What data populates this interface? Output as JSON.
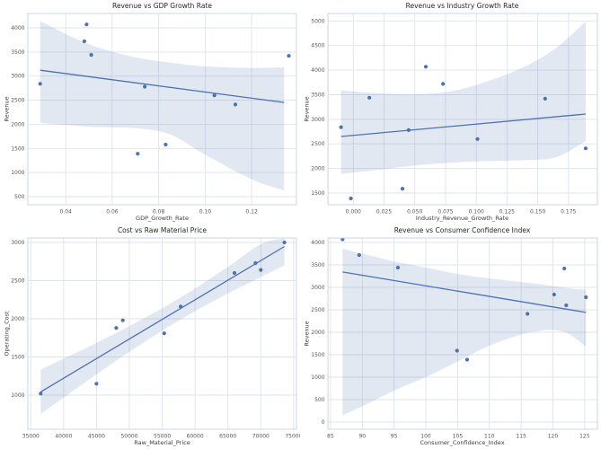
{
  "figure": {
    "rows": 2,
    "cols": 2,
    "background": "#ffffff",
    "description": "2x2 grid of scatter plots with linear regression fits and confidence bands"
  },
  "style": {
    "point_color": "#4c72b0",
    "line_color": "#4c72b0",
    "band_fill": "#4c72b0",
    "band_opacity": 0.16,
    "grid_color": "#dde3ee",
    "spine_color": "#ccd4e3",
    "tick_color": "#555555",
    "title_color": "#262626",
    "label_color": "#3c3c3c"
  },
  "chart_data": [
    {
      "type": "scatter",
      "title": "Revenue vs GDP Growth Rate",
      "xlabel": "GDP_Growth_Rate",
      "ylabel": "Revenue",
      "grid": true,
      "legend": false,
      "xlim": [
        0.0237,
        0.1393
      ],
      "ylim": [
        332,
        4298
      ],
      "xticks": {
        "values": [
          0.04,
          0.06,
          0.08,
          0.1,
          0.12
        ],
        "labels": [
          "0.04",
          "0.06",
          "0.08",
          "0.10",
          "0.12"
        ]
      },
      "yticks": {
        "values": [
          500,
          1000,
          1500,
          2000,
          2500,
          3000,
          3500,
          4000
        ],
        "labels": [
          "500",
          "1000",
          "1500",
          "2000",
          "2500",
          "3000",
          "3500",
          "4000"
        ]
      },
      "x": [
        0.029,
        0.048,
        0.049,
        0.051,
        0.071,
        0.074,
        0.083,
        0.104,
        0.113,
        0.136
      ],
      "y": [
        2840,
        3720,
        4070,
        3440,
        1390,
        2780,
        1580,
        2600,
        2410,
        3420
      ],
      "trendline": {
        "x": [
          0.029,
          0.134
        ],
        "y": [
          3122,
          2453
        ]
      },
      "ci_band": {
        "x": [
          0.029,
          0.05,
          0.07,
          0.085,
          0.1,
          0.12,
          0.134
        ],
        "upper": [
          4140,
          3660,
          3390,
          3280,
          3200,
          3170,
          3180
        ],
        "lower": [
          2030,
          1950,
          1920,
          1790,
          1370,
          860,
          630
        ]
      }
    },
    {
      "type": "scatter",
      "title": "Revenue vs Industry Growth Rate",
      "xlabel": "Industry_Revenue_Growth_Rate",
      "ylabel": "Revenue",
      "grid": true,
      "legend": false,
      "xlim": [
        -0.0206,
        0.1985
      ],
      "ylim": [
        1263,
        5152
      ],
      "xticks": {
        "values": [
          0.0,
          0.025,
          0.05,
          0.075,
          0.1,
          0.125,
          0.15,
          0.175
        ],
        "labels": [
          "0.000",
          "0.025",
          "0.050",
          "0.075",
          "0.100",
          "0.125",
          "0.150",
          "0.175"
        ]
      },
      "yticks": {
        "values": [
          1500,
          2000,
          2500,
          3000,
          3500,
          4000,
          4500,
          5000
        ],
        "labels": [
          "1500",
          "2000",
          "2500",
          "3000",
          "3500",
          "4000",
          "4500",
          "5000"
        ]
      },
      "x": [
        -0.01,
        -0.002,
        0.013,
        0.04,
        0.045,
        0.059,
        0.073,
        0.101,
        0.156,
        0.189
      ],
      "y": [
        2840,
        1390,
        3440,
        1590,
        2780,
        4070,
        3720,
        2600,
        3420,
        2410
      ],
      "trendline": {
        "x": [
          -0.01,
          0.189
        ],
        "y": [
          2651,
          3107
        ]
      },
      "ci_band": {
        "x": [
          -0.01,
          0.02,
          0.05,
          0.08,
          0.11,
          0.14,
          0.165,
          0.189
        ],
        "upper": [
          3590,
          3530,
          3510,
          3570,
          3780,
          4080,
          4450,
          4990
        ],
        "lower": [
          1890,
          1970,
          2060,
          2120,
          2150,
          2170,
          2230,
          2560
        ]
      }
    },
    {
      "type": "scatter",
      "title": "Cost vs Raw Material Price",
      "xlabel": "Raw_Material_Price",
      "ylabel": "Operating_Cost",
      "grid": true,
      "legend": false,
      "xlim": [
        34550,
        75430
      ],
      "ylim": [
        553,
        3059
      ],
      "xticks": {
        "values": [
          35000,
          40000,
          45000,
          50000,
          55000,
          60000,
          65000,
          70000,
          75000
        ],
        "labels": [
          "35000",
          "40000",
          "45000",
          "50000",
          "55000",
          "60000",
          "65000",
          "70000",
          "75000"
        ]
      },
      "yticks": {
        "values": [
          1000,
          1500,
          2000,
          2500,
          3000
        ],
        "labels": [
          "1000",
          "1500",
          "2000",
          "2500",
          "3000"
        ]
      },
      "x": [
        36500,
        45000,
        48000,
        49000,
        55300,
        57800,
        66000,
        69200,
        70000,
        73600
      ],
      "y": [
        1020,
        1150,
        1880,
        1980,
        1810,
        2160,
        2600,
        2730,
        2640,
        3000
      ],
      "trendline": {
        "x": [
          36500,
          73600
        ],
        "y": [
          1043,
          2947
        ]
      },
      "ci_band": {
        "x": [
          36500,
          45000,
          50000,
          55000,
          57040,
          60000,
          65000,
          70000,
          73600
        ],
        "upper": [
          1334,
          1686,
          1905,
          2139,
          2242,
          2398,
          2681,
          2978,
          3055
        ],
        "lower": [
          752,
          1272,
          1567,
          1845,
          1952,
          2100,
          2331,
          2546,
          2700
        ]
      }
    },
    {
      "type": "scatter",
      "title": "Revenue vs Consumer Confidence Index",
      "xlabel": "Consumer_Confidence_Index",
      "ylabel": "Revenue",
      "grid": true,
      "legend": false,
      "xlim": [
        84.6,
        127.0
      ],
      "ylim": [
        -160,
        4100
      ],
      "xticks": {
        "values": [
          85,
          90,
          95,
          100,
          105,
          110,
          115,
          120,
          125
        ],
        "labels": [
          "85",
          "90",
          "95",
          "100",
          "105",
          "110",
          "115",
          "120",
          "125"
        ]
      },
      "yticks": {
        "values": [
          0,
          500,
          1000,
          1500,
          2000,
          2500,
          3000,
          3500,
          4000
        ],
        "labels": [
          "0",
          "500",
          "1000",
          "1500",
          "2000",
          "2500",
          "3000",
          "3500",
          "4000"
        ]
      },
      "x": [
        86.9,
        89.5,
        95.6,
        104.9,
        106.5,
        116.0,
        120.2,
        121.8,
        122.1,
        125.2
      ],
      "y": [
        4070,
        3720,
        3440,
        1590,
        1390,
        2410,
        2840,
        3420,
        2600,
        2780
      ],
      "trendline": {
        "x": [
          86.9,
          125.2
        ],
        "y": [
          3343,
          2442
        ]
      },
      "ci_band": {
        "x": [
          86.9,
          90,
          95,
          100,
          105,
          110,
          115,
          117.5,
          120,
          122.5,
          125.2
        ],
        "upper": [
          3860,
          3750,
          3580,
          3440,
          3300,
          3200,
          3120,
          3080,
          3030,
          2980,
          2950
        ],
        "lower": [
          150,
          350,
          700,
          1000,
          1350,
          1700,
          1950,
          2020,
          2050,
          1960,
          1680
        ]
      }
    }
  ]
}
